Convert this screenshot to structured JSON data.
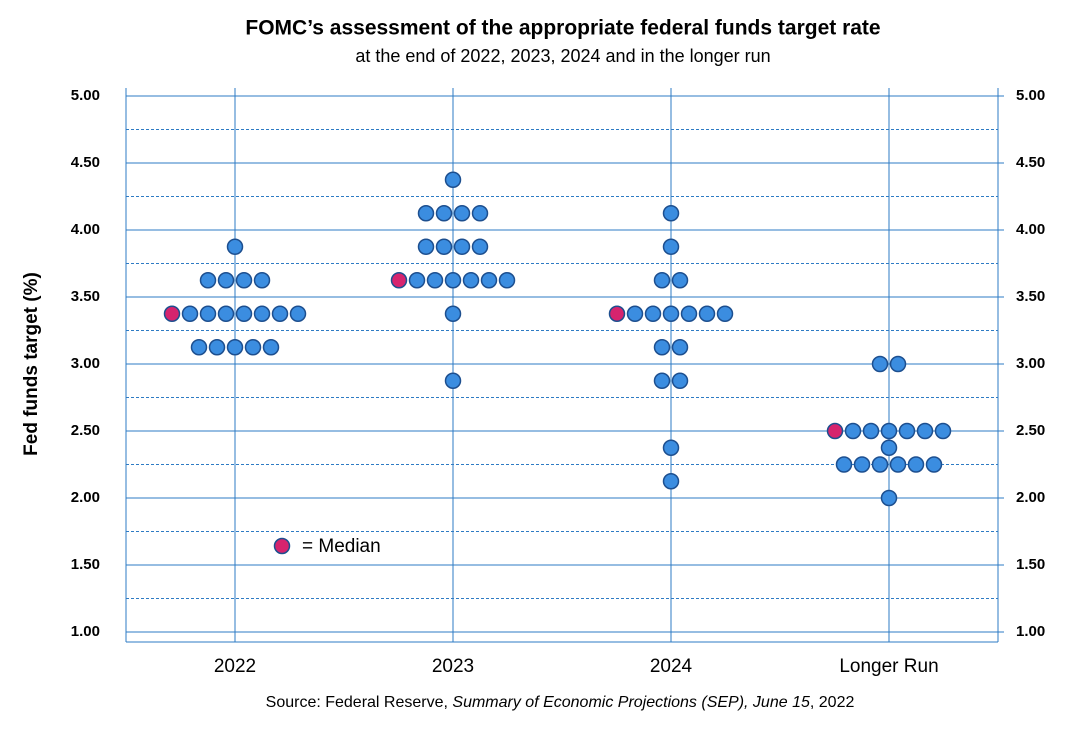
{
  "chart_data": {
    "type": "dot",
    "title": "FOMC’s assessment of the appropriate federal funds target rate",
    "subtitle": "at the end of 2022, 2023, 2024 and in the longer run",
    "y_label": "Fed funds target (%)",
    "source": {
      "prefix": "Source: Federal Reserve, ",
      "italic": "Summary of Economic Projections (SEP), June 15",
      "suffix": ", 2022"
    },
    "categories": [
      "2022",
      "2023",
      "2024",
      "Longer Run"
    ],
    "series": [
      {
        "color": "#3b8de0",
        "values": [
          [
            3.875,
            3.625,
            3.625,
            3.625,
            3.625,
            3.375,
            3.375,
            3.375,
            3.375,
            3.375,
            3.375,
            3.375,
            3.125,
            3.125,
            3.125,
            3.125,
            3.125
          ],
          [
            4.375,
            4.125,
            4.125,
            4.125,
            4.125,
            3.875,
            3.875,
            3.875,
            3.875,
            3.625,
            3.625,
            3.625,
            3.625,
            3.625,
            3.625,
            3.375,
            2.875
          ],
          [
            4.125,
            3.875,
            3.625,
            3.625,
            3.375,
            3.375,
            3.375,
            3.375,
            3.375,
            3.375,
            3.125,
            3.125,
            2.875,
            2.875,
            2.375,
            2.125
          ],
          [
            3.0,
            3.0,
            2.5,
            2.5,
            2.5,
            2.5,
            2.5,
            2.5,
            2.375,
            2.25,
            2.25,
            2.25,
            2.25,
            2.25,
            2.25,
            2.0
          ]
        ]
      },
      {
        "name": "= Median",
        "color": "#d6246e",
        "values": [
          3.375,
          3.625,
          3.375,
          2.5
        ]
      }
    ],
    "ylim": [
      1,
      5
    ],
    "yticks": [
      {
        "value": 1,
        "label": "1.00"
      },
      {
        "value": 1.5,
        "label": "1.50"
      },
      {
        "value": 2,
        "label": "2.00"
      },
      {
        "value": 2.5,
        "label": "2.50"
      },
      {
        "value": 3,
        "label": "3.00"
      },
      {
        "value": 3.5,
        "label": "3.50"
      },
      {
        "value": 4,
        "label": "4.00"
      },
      {
        "value": 4.5,
        "label": "4.50"
      },
      {
        "value": 5,
        "label": "5.00"
      }
    ],
    "y2lim": [
      1,
      5
    ],
    "y2ticks": [
      {
        "value": 1,
        "label": "1.00"
      },
      {
        "value": 1.5,
        "label": "1.50"
      },
      {
        "value": 2,
        "label": "2.00"
      },
      {
        "value": 2.5,
        "label": "2.50"
      },
      {
        "value": 3,
        "label": "3.00"
      },
      {
        "value": 3.5,
        "label": "3.50"
      },
      {
        "value": 4,
        "label": "4.00"
      },
      {
        "value": 4.5,
        "label": "4.50"
      },
      {
        "value": 5,
        "label": "5.00"
      }
    ],
    "minor_grid": [
      1.25,
      1.75,
      2.25,
      2.75,
      3.25,
      3.75,
      4.25,
      4.75
    ],
    "grid": true,
    "grid_color": "#2e7bc4"
  }
}
